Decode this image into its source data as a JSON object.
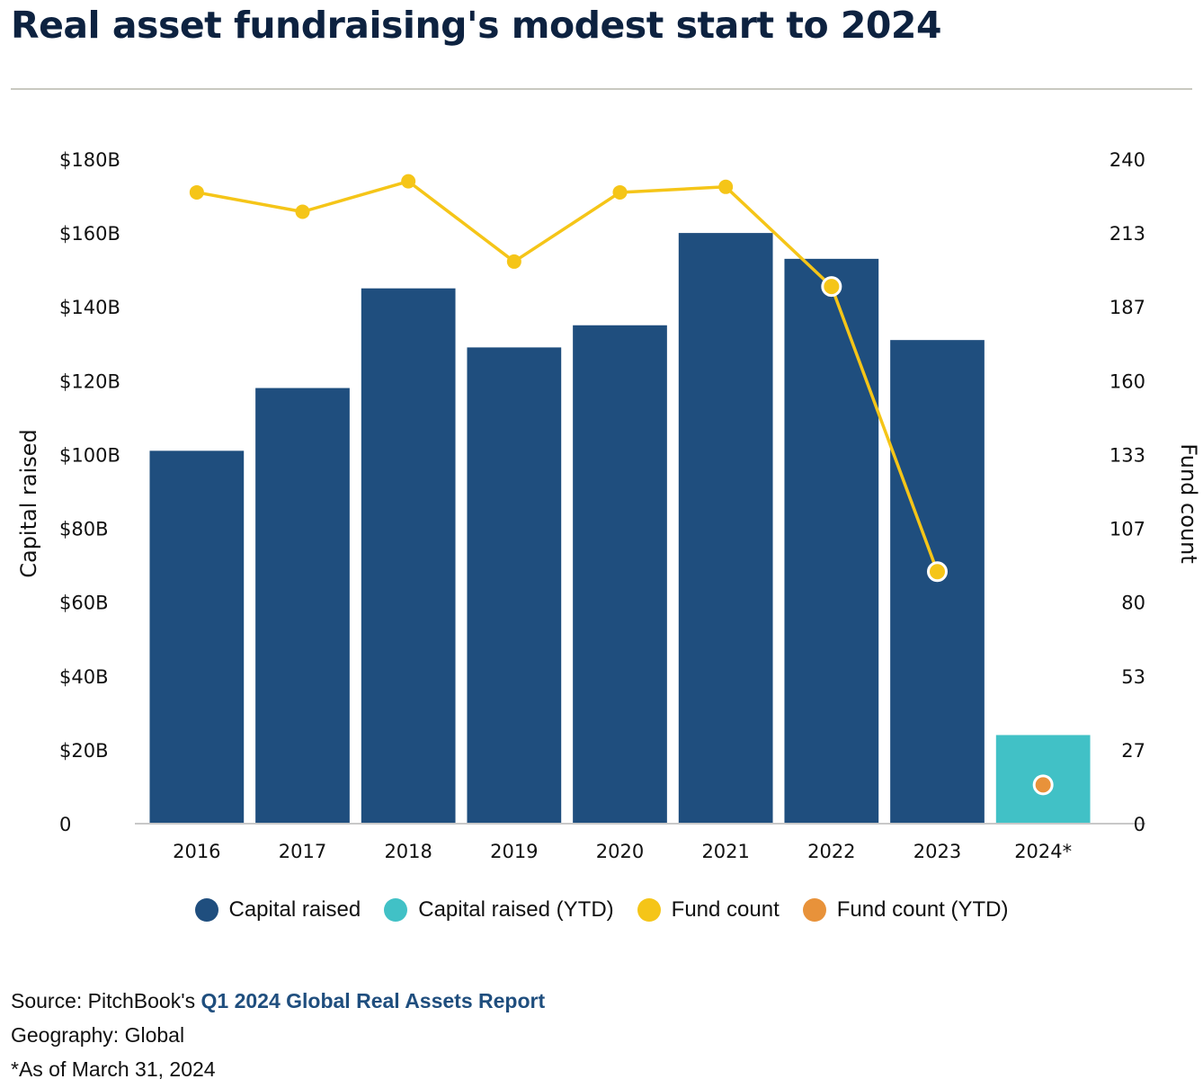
{
  "title": "Real asset fundraising's modest start to 2024",
  "chart_data": {
    "type": "bar",
    "categories": [
      "2016",
      "2017",
      "2018",
      "2019",
      "2020",
      "2021",
      "2022",
      "2023",
      "2024*"
    ],
    "series": [
      {
        "name": "Capital raised",
        "kind": "bar",
        "axis": "left",
        "color": "#1f4e7e",
        "values": [
          101,
          118,
          145,
          129,
          135,
          160,
          153,
          131,
          null
        ]
      },
      {
        "name": "Capital raised (YTD)",
        "kind": "bar",
        "axis": "left",
        "color": "#41c1c6",
        "values": [
          null,
          null,
          null,
          null,
          null,
          null,
          null,
          null,
          24
        ]
      },
      {
        "name": "Fund count",
        "kind": "line",
        "axis": "right",
        "color": "#f5c518",
        "values": [
          228,
          221,
          232,
          203,
          228,
          230,
          194,
          91,
          null
        ]
      },
      {
        "name": "Fund count (YTD)",
        "kind": "point",
        "axis": "right",
        "color": "#e8923a",
        "values": [
          null,
          null,
          null,
          null,
          null,
          null,
          null,
          null,
          14
        ]
      }
    ],
    "y_left": {
      "label": "Capital raised",
      "ylim": [
        0,
        180
      ],
      "ticks": [
        0,
        20,
        40,
        60,
        80,
        100,
        120,
        140,
        160,
        180
      ],
      "tick_labels": [
        "0",
        "$20B",
        "$40B",
        "$60B",
        "$80B",
        "$100B",
        "$120B",
        "$140B",
        "$160B",
        "$180B"
      ]
    },
    "y_right": {
      "label": "Fund count",
      "ylim": [
        0,
        240
      ],
      "tick_labels": [
        "0",
        "27",
        "53",
        "80",
        "107",
        "133",
        "160",
        "187",
        "213",
        "240"
      ]
    },
    "grid": false,
    "legend": "bottom"
  },
  "footer": {
    "source_prefix": "Source: PitchBook's ",
    "source_link": "Q1 2024 Global Real Assets Report",
    "geography": "Geography: Global",
    "note": "*As of March 31, 2024"
  }
}
